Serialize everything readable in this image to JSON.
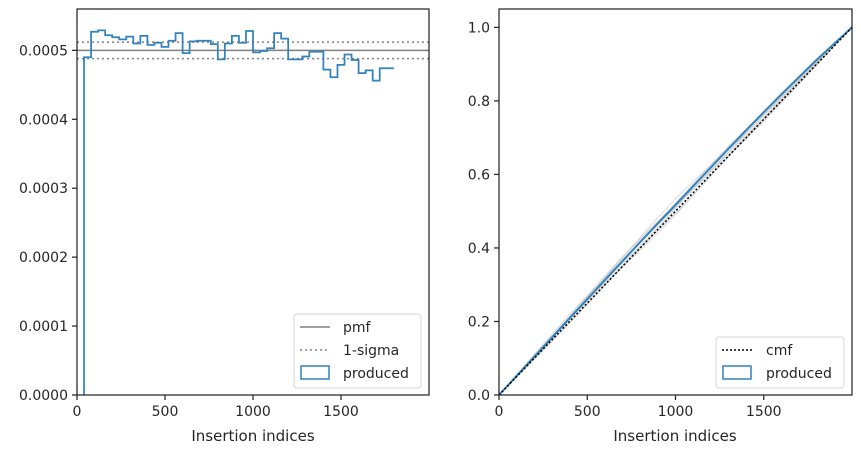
{
  "colors": {
    "produced": "#3182bd",
    "pmf": "#808080",
    "sigma": "#808080",
    "cmf": "#000000",
    "bootstrap": "#cccccc",
    "axes": "#262626"
  },
  "chart_data": [
    {
      "type": "line",
      "xlabel": "Insertion indices",
      "ylabel": "",
      "xlim": [
        0,
        2000
      ],
      "ylim": [
        0,
        0.00056
      ],
      "xticks": [
        "0",
        "500",
        "1000",
        "1500"
      ],
      "xtick_values": [
        0,
        500,
        1000,
        1500
      ],
      "yticks": [
        "0.0000",
        "0.0001",
        "0.0002",
        "0.0003",
        "0.0004",
        "0.0005"
      ],
      "ytick_values": [
        0,
        0.0001,
        0.0002,
        0.0003,
        0.0004,
        0.0005
      ],
      "legend_position": "lower-right",
      "legend": [
        "pmf",
        "1-sigma",
        "produced"
      ],
      "pmf": 0.0005,
      "sigma": [
        0.000488,
        0.000512
      ],
      "bin_width": 40,
      "series": [
        {
          "name": "produced",
          "style": "step",
          "bin_edges_start": 40,
          "values": [
            0.00049,
            0.000527,
            0.000529,
            0.000522,
            0.000519,
            0.000516,
            0.00052,
            0.00051,
            0.000521,
            0.000508,
            0.000511,
            0.000505,
            0.000514,
            0.000525,
            0.000496,
            0.000513,
            0.000514,
            0.000514,
            0.000509,
            0.000487,
            0.00051,
            0.000521,
            0.000511,
            0.000528,
            0.000497,
            0.000499,
            0.000503,
            0.000525,
            0.000517,
            0.000487,
            0.000487,
            0.000491,
            0.000498,
            0.000498,
            0.000472,
            0.000461,
            0.000479,
            0.000494,
            0.000486,
            0.000467,
            0.000471,
            0.000456,
            0.000474,
            0.000474
          ]
        }
      ]
    },
    {
      "type": "line",
      "xlabel": "Insertion indices",
      "ylabel": "",
      "xlim": [
        0,
        2000
      ],
      "ylim": [
        0,
        1.05
      ],
      "xticks": [
        "0",
        "500",
        "1000",
        "1500"
      ],
      "xtick_values": [
        0,
        500,
        1000,
        1500
      ],
      "yticks": [
        "0.0",
        "0.2",
        "0.4",
        "0.6",
        "0.8",
        "1.0"
      ],
      "ytick_values": [
        0,
        0.2,
        0.4,
        0.6,
        0.8,
        1.0
      ],
      "legend_position": "lower-right",
      "legend": [
        "cmf",
        "produced"
      ],
      "series": [
        {
          "name": "cmf",
          "style": "dotted",
          "x": [
            0,
            2000
          ],
          "y": [
            0,
            1.0
          ]
        },
        {
          "name": "produced",
          "style": "line",
          "x": [
            0,
            200,
            400,
            600,
            800,
            1000,
            1200,
            1400,
            1600,
            1800,
            2000
          ],
          "y": [
            0,
            0.104,
            0.209,
            0.313,
            0.416,
            0.517,
            0.619,
            0.72,
            0.818,
            0.912,
            1.0
          ]
        }
      ]
    }
  ]
}
